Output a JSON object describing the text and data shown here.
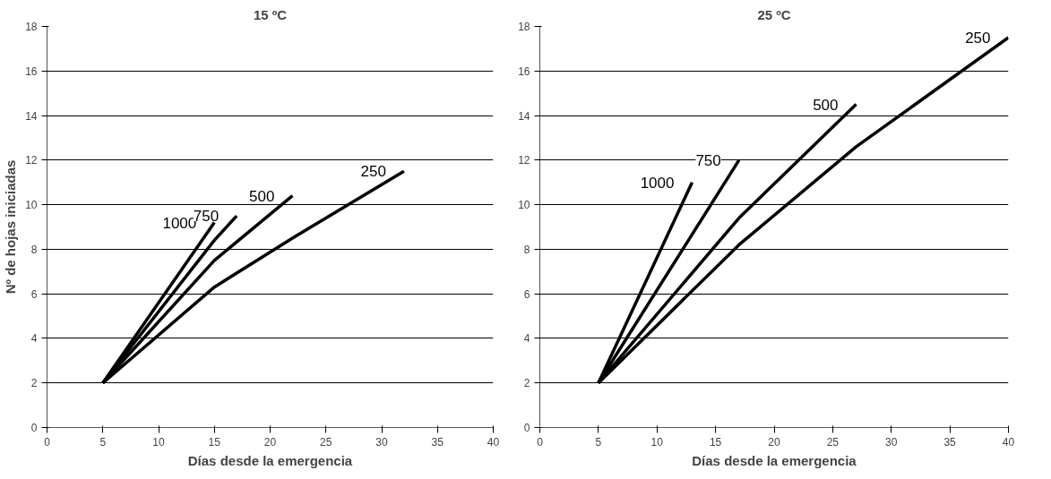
{
  "chart_data": [
    {
      "type": "line",
      "title": "15 ºC",
      "xlabel": "Días desde la emergencia",
      "ylabel": "Nº de hojas iniciadas",
      "xlim": [
        0,
        40
      ],
      "ylim": [
        0,
        18
      ],
      "xticks": [
        0,
        5,
        10,
        15,
        20,
        25,
        30,
        35,
        40
      ],
      "yticks": [
        0,
        2,
        4,
        6,
        8,
        10,
        12,
        14,
        16,
        18
      ],
      "grid": "y",
      "marker": "none",
      "line_style": "solid",
      "series": [
        {
          "name": "1000",
          "color": "#000000",
          "x": [
            5,
            15
          ],
          "values": [
            2,
            9.2
          ]
        },
        {
          "name": "750",
          "color": "#000000",
          "x": [
            5,
            15,
            17
          ],
          "values": [
            2,
            8.4,
            9.5
          ]
        },
        {
          "name": "500",
          "color": "#000000",
          "x": [
            5,
            15,
            22
          ],
          "values": [
            2,
            7.5,
            10.4
          ]
        },
        {
          "name": "250",
          "color": "#000000",
          "x": [
            5,
            15,
            22,
            32
          ],
          "values": [
            2,
            6.3,
            8.5,
            11.5
          ]
        }
      ]
    },
    {
      "type": "line",
      "title": "25 ºC",
      "xlabel": "Días desde la emergencia",
      "xlim": [
        0,
        40
      ],
      "ylim": [
        0,
        18
      ],
      "xticks": [
        0,
        5,
        10,
        15,
        20,
        25,
        30,
        35,
        40
      ],
      "yticks": [
        0,
        2,
        4,
        6,
        8,
        10,
        12,
        14,
        16,
        18
      ],
      "grid": "y",
      "marker": "none",
      "line_style": "solid",
      "series": [
        {
          "name": "1000",
          "color": "#000000",
          "x": [
            5,
            13
          ],
          "values": [
            2,
            11
          ]
        },
        {
          "name": "750",
          "color": "#000000",
          "x": [
            5,
            17
          ],
          "values": [
            2,
            12
          ]
        },
        {
          "name": "500",
          "color": "#000000",
          "x": [
            5,
            17,
            27
          ],
          "values": [
            2,
            9.4,
            14.5
          ]
        },
        {
          "name": "250",
          "color": "#000000",
          "x": [
            5,
            17,
            27,
            40
          ],
          "values": [
            2,
            8.2,
            12.6,
            17.5
          ]
        }
      ]
    }
  ]
}
